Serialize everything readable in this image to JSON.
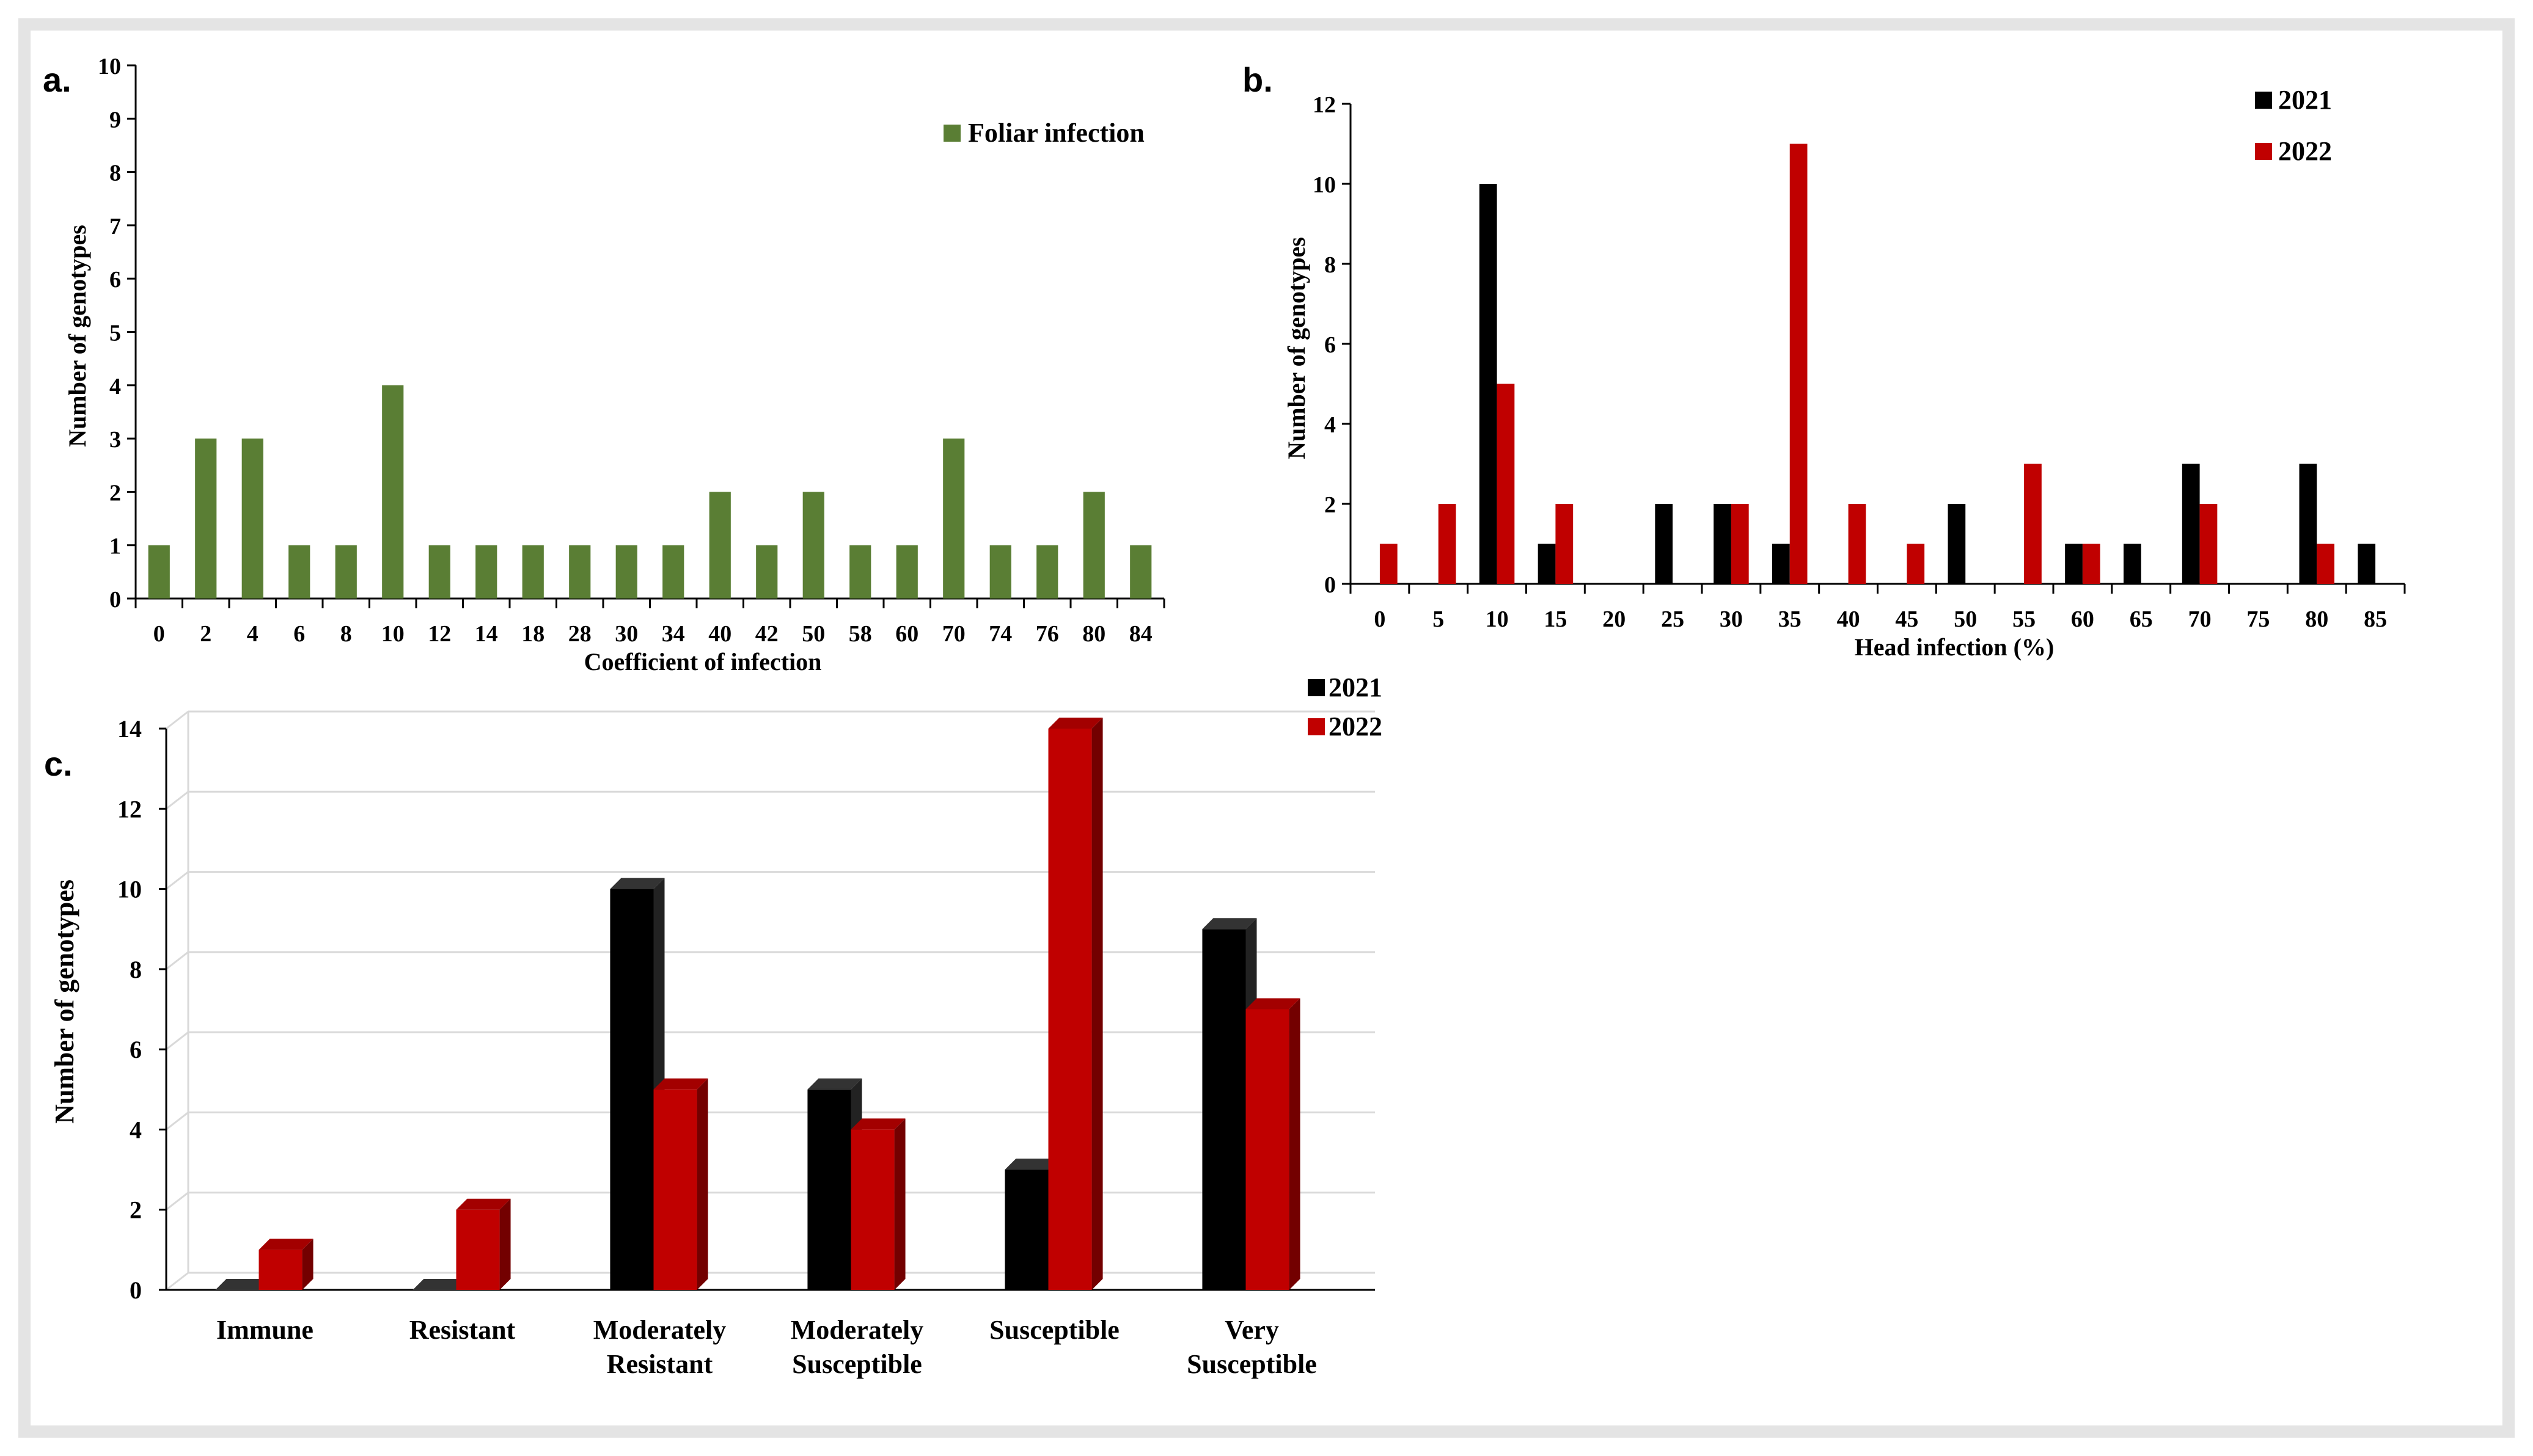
{
  "chart_data": [
    {
      "panel_label": "a.",
      "type": "bar",
      "title": "",
      "xlabel": "Coefficient of infection",
      "ylabel": "Number of genotypes",
      "ylim": [
        0,
        10
      ],
      "y_ticks": [
        "0",
        "1",
        "2",
        "3",
        "4",
        "5",
        "6",
        "7",
        "8",
        "9",
        "10"
      ],
      "categories": [
        "0",
        "2",
        "4",
        "6",
        "8",
        "10",
        "12",
        "14",
        "18",
        "28",
        "30",
        "34",
        "40",
        "42",
        "50",
        "58",
        "60",
        "70",
        "74",
        "76",
        "80",
        "84"
      ],
      "series": [
        {
          "name": "Foliar infection",
          "color": "#5a7e34",
          "values": [
            1,
            3,
            3,
            1,
            1,
            4,
            1,
            1,
            1,
            1,
            1,
            1,
            2,
            1,
            2,
            1,
            1,
            3,
            1,
            1,
            2,
            1
          ]
        }
      ],
      "legend_position": "top-right"
    },
    {
      "panel_label": "b.",
      "type": "bar",
      "title": "",
      "xlabel": "Head infection (%)",
      "ylabel": "Number of genotypes",
      "ylim": [
        0,
        12
      ],
      "y_ticks": [
        "0",
        "2",
        "4",
        "6",
        "8",
        "10",
        "12"
      ],
      "categories": [
        "0",
        "5",
        "10",
        "15",
        "20",
        "25",
        "30",
        "35",
        "40",
        "45",
        "50",
        "55",
        "60",
        "65",
        "70",
        "75",
        "80",
        "85"
      ],
      "series": [
        {
          "name": "2021",
          "color": "#000000",
          "values": [
            0,
            0,
            10,
            1,
            0,
            2,
            2,
            1,
            0,
            0,
            2,
            0,
            1,
            1,
            3,
            0,
            3,
            1
          ]
        },
        {
          "name": "2022",
          "color": "#c00000",
          "values": [
            1,
            2,
            5,
            2,
            0,
            0,
            2,
            11,
            2,
            1,
            0,
            3,
            1,
            0,
            2,
            0,
            1,
            0
          ]
        }
      ],
      "legend_position": "top-right"
    },
    {
      "panel_label": "c.",
      "type": "bar",
      "title": "",
      "xlabel": "",
      "ylabel": "Number of genotypes",
      "ylim": [
        0,
        14
      ],
      "y_ticks": [
        "0",
        "2",
        "4",
        "6",
        "8",
        "10",
        "12",
        "14"
      ],
      "categories": [
        [
          "Immune"
        ],
        [
          "Resistant"
        ],
        [
          "Moderately",
          "Resistant"
        ],
        [
          "Moderately",
          "Susceptible"
        ],
        [
          "Susceptible"
        ],
        [
          "Very",
          "Susceptible"
        ]
      ],
      "series": [
        {
          "name": "2021",
          "color": "#000000",
          "values": [
            0,
            0,
            10,
            5,
            3,
            9
          ]
        },
        {
          "name": "2022",
          "color": "#c00000",
          "values": [
            1,
            2,
            5,
            4,
            14,
            7
          ]
        }
      ],
      "legend_position": "top-right",
      "grid": true,
      "style": "3d"
    }
  ]
}
